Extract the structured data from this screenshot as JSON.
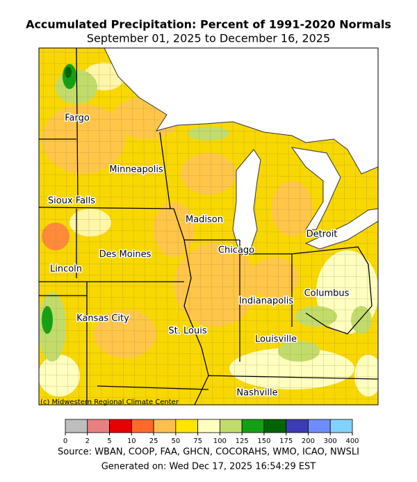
{
  "title": "Accumulated Precipitation: Percent of 1991-2020 Normals",
  "subtitle": "September 01, 2025 to December 16, 2025",
  "cities": [
    "Fargo",
    "Minneapolis",
    "Sioux Falls",
    "Madison",
    "Detroit",
    "Chicago",
    "Des Moines",
    "Lincoln",
    "Columbus",
    "Indianapolis",
    "Kansas City",
    "St. Louis",
    "Louisville",
    "Nashville"
  ],
  "credit": "(c) Midwestern Regional Climate Center",
  "legend": {
    "bins": [
      0,
      2,
      5,
      10,
      25,
      50,
      75,
      100,
      125,
      150,
      175,
      200,
      300,
      400
    ],
    "colors": [
      "#bebebe",
      "#e88080",
      "#e60000",
      "#ff6a2a",
      "#ffbf4f",
      "#ffe500",
      "#ffffc0",
      "#c2dc6c",
      "#14a014",
      "#006400",
      "#3c3cb4",
      "#6e8cff",
      "#82d2ff"
    ]
  },
  "source": "Source: WBAN, COOP, FAA, GHCN, COCORAHS, WMO, ICAO, NWSLI",
  "generated": "Generated on: Wed Dec 17, 2025 16:54:29 EST"
}
